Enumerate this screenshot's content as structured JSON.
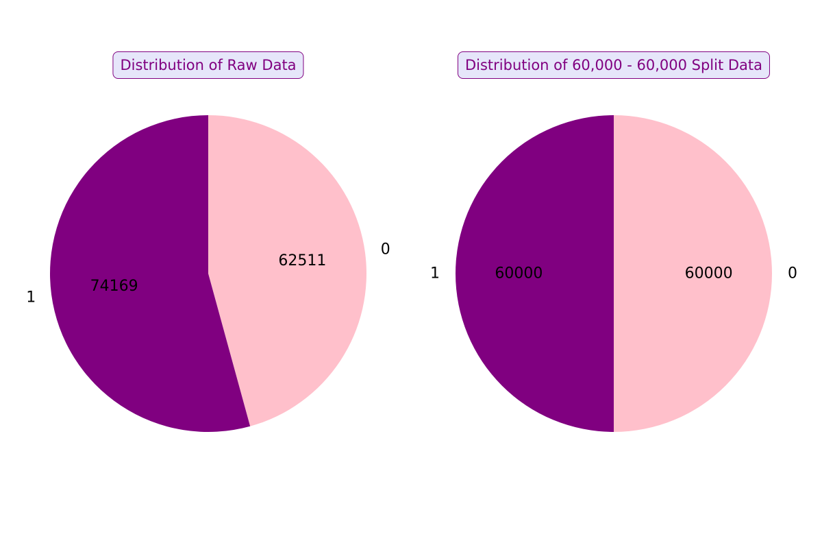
{
  "chart_data": [
    {
      "type": "pie",
      "title": "Distribution of Raw Data",
      "categories": [
        "0",
        "1"
      ],
      "values": [
        62511,
        74169
      ],
      "value_labels": [
        "62511",
        "74169"
      ],
      "colors": [
        "#ffc0cb",
        "#800080"
      ],
      "start_angle": 90,
      "direction": "clockwise",
      "legend": "none"
    },
    {
      "type": "pie",
      "title": "Distribution of 60,000 - 60,000 Split Data",
      "categories": [
        "0",
        "1"
      ],
      "values": [
        60000,
        60000
      ],
      "value_labels": [
        "60000",
        "60000"
      ],
      "colors": [
        "#ffc0cb",
        "#800080"
      ],
      "start_angle": 90,
      "direction": "clockwise",
      "legend": "none"
    }
  ]
}
